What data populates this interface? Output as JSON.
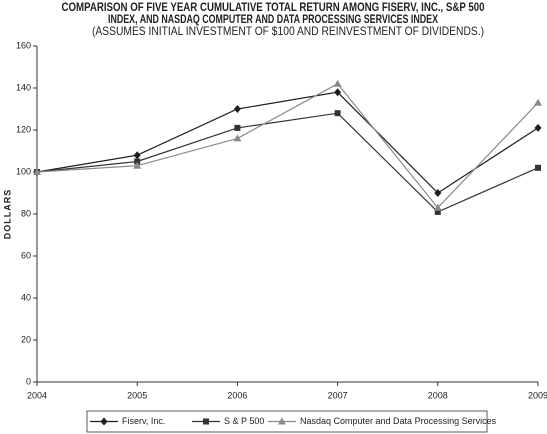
{
  "chart_data": {
    "type": "line",
    "title": [
      "COMPARISON OF FIVE YEAR CUMULATIVE TOTAL RETURN AMONG FISERV, INC., S&P 500",
      "INDEX, AND NASDAQ COMPUTER AND DATA PROCESSING SERVICES INDEX"
    ],
    "subtitle": "(ASSUMES INITIAL INVESTMENT OF $100 AND REINVESTMENT OF DIVIDENDS.)",
    "y_label": "DOLLARS",
    "x": [
      2004,
      2005,
      2006,
      2007,
      2008,
      2009
    ],
    "xlim": [
      2004,
      2009
    ],
    "xticks": [
      2004,
      2005,
      2006,
      2007,
      2008,
      2009
    ],
    "ylim": [
      0,
      160
    ],
    "yticks": [
      0,
      20,
      40,
      60,
      80,
      100,
      120,
      140,
      160
    ],
    "grid": false,
    "legend": "bottom",
    "series": [
      {
        "name": "Fiserv, Inc.",
        "color": "#1e1e1e",
        "marker": "diamond",
        "values": [
          100,
          108,
          130,
          138,
          90,
          121
        ]
      },
      {
        "name": "S & P 500",
        "color": "#333333",
        "marker": "square",
        "values": [
          100,
          105,
          121,
          128,
          81,
          102
        ]
      },
      {
        "name": "Nasdaq Computer and Data Processing Services",
        "color": "#8a8a8a",
        "marker": "triangle",
        "values": [
          100,
          103,
          116,
          142,
          83,
          133
        ]
      }
    ]
  }
}
